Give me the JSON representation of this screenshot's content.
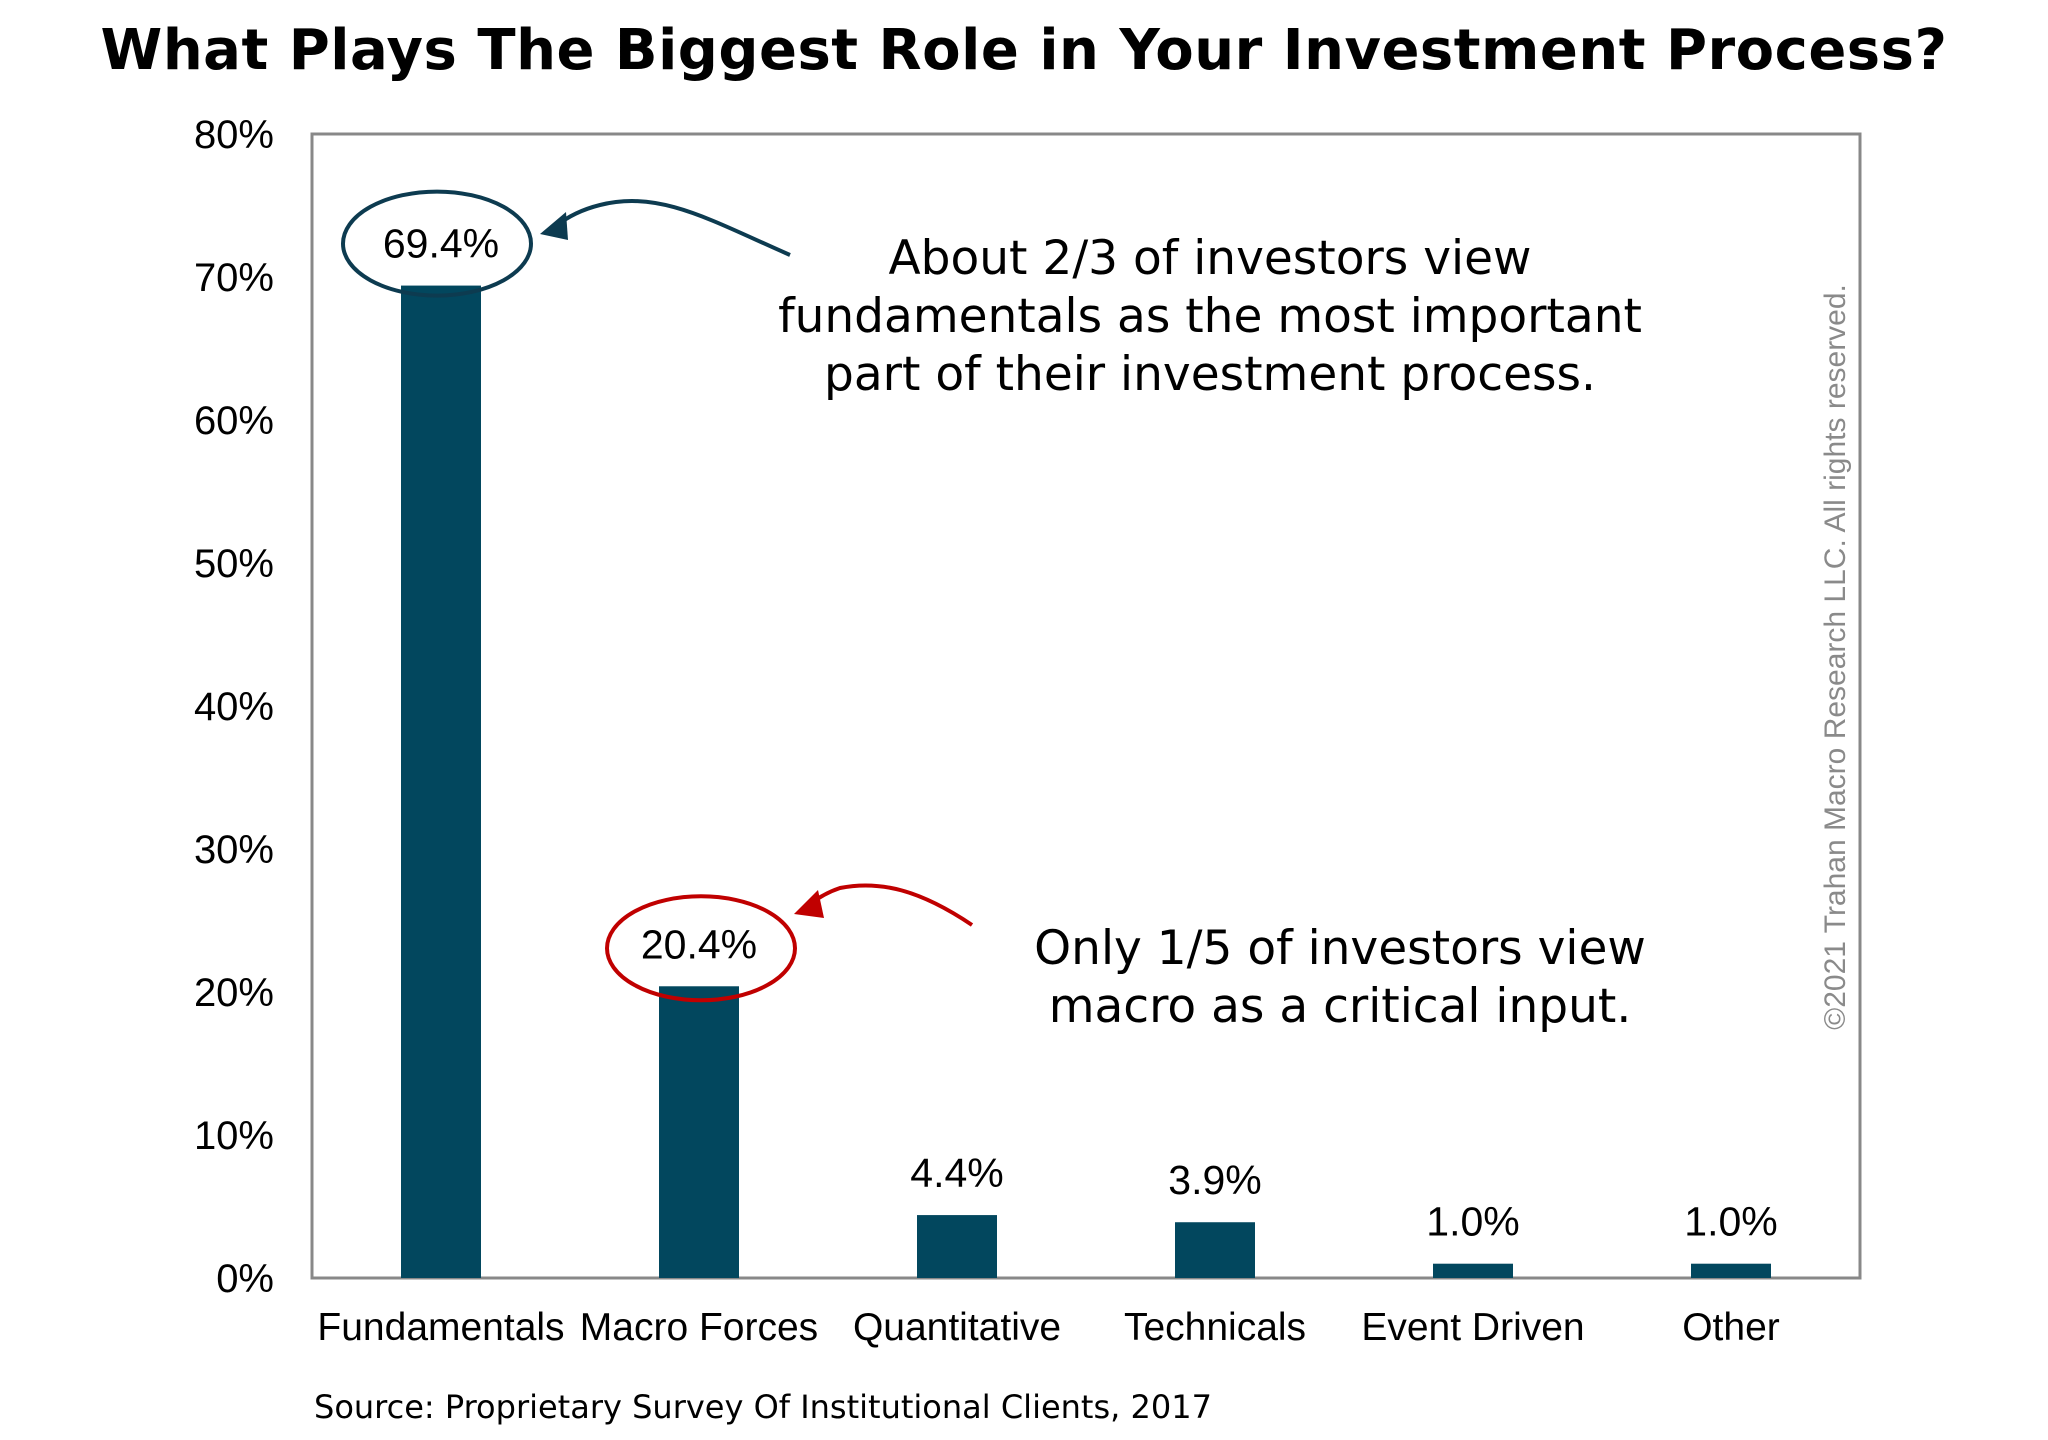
{
  "title": "What Plays The Biggest Role in Your Investment Process?",
  "source": "Source: Proprietary Survey Of Institutional Clients, 2017",
  "watermark": "©2021 Trahan Macro Research LLC. All rights reserved.",
  "annotations": {
    "fundamentals": [
      "About 2/3 of investors view",
      "fundamentals as the most important",
      "part of their investment process."
    ],
    "macro": [
      "Only 1/5 of investors view",
      "macro as a critical input."
    ]
  },
  "colors": {
    "bar": "#02475e",
    "callout_fundamentals": "#0d3b50",
    "callout_macro": "#c00000",
    "axis": "#888888"
  },
  "chart_data": {
    "type": "bar",
    "categories": [
      "Fundamentals",
      "Macro Forces",
      "Quantitative",
      "Technicals",
      "Event Driven",
      "Other"
    ],
    "values": [
      69.4,
      20.4,
      4.4,
      3.9,
      1.0,
      1.0
    ],
    "data_labels": [
      "69.4%",
      "20.4%",
      "4.4%",
      "3.9%",
      "1.0%",
      "1.0%"
    ],
    "ylim": [
      0,
      80
    ],
    "yticks": [
      "0%",
      "10%",
      "20%",
      "30%",
      "40%",
      "50%",
      "60%",
      "70%",
      "80%"
    ],
    "highlighted": [
      "Fundamentals",
      "Macro Forces"
    ],
    "grid": false,
    "legend": "none"
  }
}
